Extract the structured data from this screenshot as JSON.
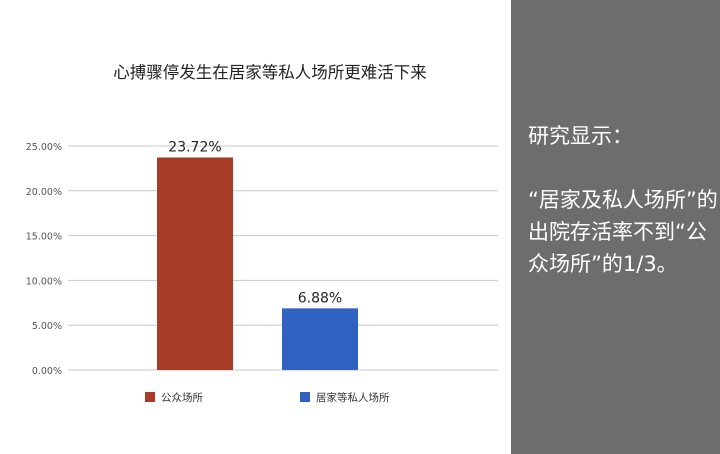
{
  "chart_data": {
    "type": "bar",
    "title": "心搏骤停发生在居家等私人场所更难活下来",
    "categories": [
      "公众场所",
      "居家等私人场所"
    ],
    "values": [
      23.72,
      6.88
    ],
    "data_labels": [
      "23.72%",
      "6.88%"
    ],
    "ylim": [
      0,
      25
    ],
    "yticks": [
      0,
      5,
      10,
      15,
      20,
      25
    ],
    "ytick_labels": [
      "0.00%",
      "5.00%",
      "10.00%",
      "15.00%",
      "20.00%",
      "25.00%"
    ],
    "xlabel": "",
    "ylabel": "",
    "grid": true,
    "legend_position": "bottom",
    "colors": [
      "#a63c28",
      "#2f62c1"
    ]
  },
  "side_panel": {
    "heading": "研究显示：",
    "body": "“居家及私人场所”的出院存活率不到“公众场所”的1/3。",
    "background": "#6d6d6d"
  }
}
